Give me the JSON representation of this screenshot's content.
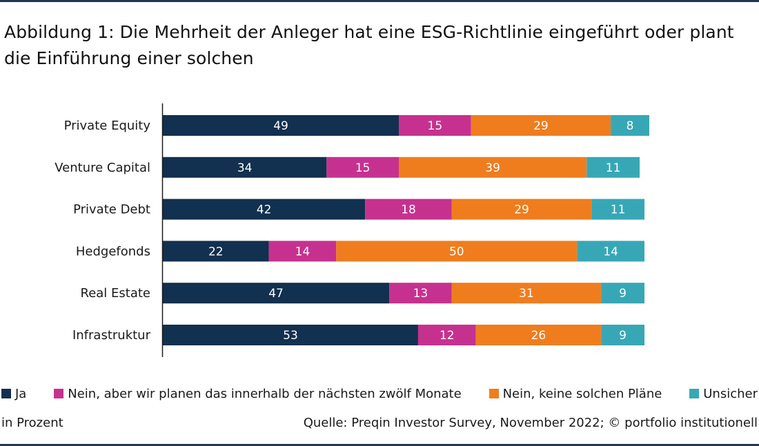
{
  "title": "Abbildung 1: Die Mehrheit der Anleger hat eine ESG-Richtlinie eingeführt oder plant die Einführung einer solchen",
  "colors": {
    "ja": "#12304f",
    "nein_planen": "#c6318f",
    "nein_keine": "#ef7d1e",
    "unsicher": "#37a7b6",
    "axis": "#1a1a1a",
    "rule": "#1f3553"
  },
  "legend": [
    {
      "label": "Ja",
      "color": "#12304f"
    },
    {
      "label": "Nein, aber wir planen das innerhalb der nächsten zwölf Monate",
      "color": "#c6318f"
    },
    {
      "label": "Nein, keine solchen Pläne",
      "color": "#ef7d1e"
    },
    {
      "label": "Unsicher",
      "color": "#37a7b6"
    }
  ],
  "footer": {
    "unit": "in Prozent",
    "source": "Quelle: Preqin Investor Survey, November 2022; © portfolio institutionell"
  },
  "chart_data": {
    "type": "bar",
    "orientation": "horizontal",
    "stacked": true,
    "categories": [
      "Private Equity",
      "Venture Capital",
      "Private Debt",
      "Hedgefonds",
      "Real Estate",
      "Infrastruktur"
    ],
    "series": [
      {
        "name": "Ja",
        "values": [
          49,
          34,
          42,
          22,
          47,
          53
        ]
      },
      {
        "name": "Nein, aber wir planen das innerhalb der nächsten zwölf Monate",
        "values": [
          15,
          15,
          18,
          14,
          13,
          12
        ]
      },
      {
        "name": "Nein, keine solchen Pläne",
        "values": [
          29,
          39,
          29,
          50,
          31,
          26
        ]
      },
      {
        "name": "Unsicher",
        "values": [
          8,
          11,
          11,
          14,
          9,
          9
        ]
      }
    ],
    "xlim": [
      0,
      100
    ],
    "grid": false,
    "data_labels": true,
    "legend_position": "bottom"
  }
}
